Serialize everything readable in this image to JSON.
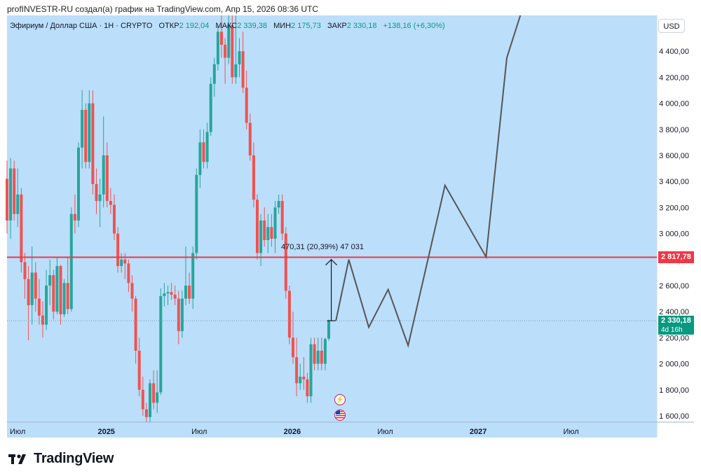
{
  "attribution": "profINVESTR-RU создал(а) график на TradingView.com, Апр 15, 2026 08:36 UTC",
  "legend": {
    "symbol": "Эфириум / Доллар США · 1Н · CRYPTO",
    "open_label": "ОТКР",
    "open": "2 192,04",
    "high_label": "МАКС",
    "high": "2 339,38",
    "low_label": "МИН",
    "low": "2 175,73",
    "close_label": "ЗАКР",
    "close": "2 330,18",
    "change": "+138,16 (+6,30%)"
  },
  "currency_button": "USD",
  "price_tags": {
    "level": "2 817,78",
    "last": "2 330,18",
    "countdown": "4d 16h"
  },
  "measure_label": "470,31 (20,39%) 47 031",
  "logo": {
    "text": "TradingView"
  },
  "icons": {
    "event_1": "bolt-icon",
    "event_2": "us-flag-icon"
  },
  "colors": {
    "background": "#bbdefb",
    "up": "#26a69a",
    "down": "#ef5350",
    "level_line": "#f23645",
    "projection": "#555555"
  },
  "chart_data": {
    "type": "candlestick",
    "title": "Эфириум / Доллар США · 1Н · CRYPTO",
    "ylim": [
      1550,
      4750
    ],
    "yticks": [
      1600,
      1800,
      2000,
      2200,
      2400,
      2600,
      2800,
      3000,
      3200,
      3400,
      3600,
      3800,
      4000,
      4200,
      4400
    ],
    "ytick_labels": [
      "1 600,00",
      "1 800,00",
      "2 000,00",
      "2 200,00",
      "2 400,00",
      "2 600,00",
      "2 800,00",
      "3 000,00",
      "3 200,00",
      "3 400,00",
      "3 600,00",
      "3 800,00",
      "4 000,00",
      "4 200,00",
      "4 400,00"
    ],
    "xticks": [
      {
        "label": "Июл",
        "week": 0,
        "bold": false
      },
      {
        "label": "2025",
        "week": 27,
        "bold": true
      },
      {
        "label": "Июл",
        "week": 53,
        "bold": false
      },
      {
        "label": "2026",
        "week": 79,
        "bold": true
      },
      {
        "label": "Июл",
        "week": 105,
        "bold": false
      },
      {
        "label": "2027",
        "week": 131,
        "bold": true
      },
      {
        "label": "Июл",
        "week": 157,
        "bold": false
      }
    ],
    "candles": [
      [
        3420,
        3560,
        3000,
        3100
      ],
      [
        3100,
        3580,
        2960,
        3500
      ],
      [
        3500,
        3560,
        3100,
        3150
      ],
      [
        3150,
        3500,
        3050,
        3300
      ],
      [
        3300,
        3350,
        2700,
        2780
      ],
      [
        2780,
        2850,
        2500,
        2650
      ],
      [
        2650,
        2750,
        2180,
        2450
      ],
      [
        2450,
        2900,
        2300,
        2700
      ],
      [
        2700,
        2780,
        2400,
        2500
      ],
      [
        2500,
        2650,
        2300,
        2370
      ],
      [
        2370,
        2480,
        2200,
        2300
      ],
      [
        2300,
        2720,
        2260,
        2600
      ],
      [
        2600,
        2800,
        2450,
        2680
      ],
      [
        2680,
        2720,
        2340,
        2400
      ],
      [
        2400,
        2820,
        2380,
        2750
      ],
      [
        2750,
        2760,
        2300,
        2380
      ],
      [
        2380,
        2650,
        2360,
        2620
      ],
      [
        2620,
        2820,
        2380,
        2420
      ],
      [
        2420,
        3200,
        2400,
        3150
      ],
      [
        3150,
        3300,
        3000,
        3100
      ],
      [
        3100,
        3700,
        3050,
        3660
      ],
      [
        3660,
        4100,
        3500,
        3950
      ],
      [
        3950,
        4000,
        3500,
        3550
      ],
      [
        3550,
        4100,
        3500,
        4000
      ],
      [
        4000,
        4100,
        3300,
        3380
      ],
      [
        3380,
        3500,
        3150,
        3250
      ],
      [
        3250,
        3420,
        3050,
        3300
      ],
      [
        3300,
        3900,
        3200,
        3600
      ],
      [
        3600,
        3700,
        3200,
        3250
      ],
      [
        3250,
        3350,
        3150,
        3220
      ],
      [
        3220,
        3300,
        2950,
        3000
      ],
      [
        3000,
        3050,
        2700,
        2750
      ],
      [
        2750,
        2850,
        2700,
        2800
      ],
      [
        2800,
        2850,
        2650,
        2770
      ],
      [
        2770,
        2800,
        2550,
        2620
      ],
      [
        2620,
        2680,
        2400,
        2500
      ],
      [
        2500,
        2520,
        2000,
        2100
      ],
      [
        2100,
        2200,
        1750,
        1800
      ],
      [
        1800,
        1900,
        1600,
        1650
      ],
      [
        1650,
        1700,
        1550,
        1590
      ],
      [
        1590,
        1880,
        1550,
        1850
      ],
      [
        1850,
        1950,
        1650,
        1700
      ],
      [
        1700,
        1950,
        1620,
        1780
      ],
      [
        1780,
        2580,
        1760,
        2520
      ],
      [
        2520,
        2620,
        2440,
        2540
      ],
      [
        2540,
        2600,
        2450,
        2550
      ],
      [
        2550,
        2620,
        2490,
        2530
      ],
      [
        2530,
        2600,
        2450,
        2500
      ],
      [
        2500,
        2560,
        2150,
        2250
      ],
      [
        2250,
        2560,
        2200,
        2500
      ],
      [
        2500,
        2900,
        2450,
        2600
      ],
      [
        2600,
        2700,
        2460,
        2500
      ],
      [
        2500,
        2900,
        2420,
        2850
      ],
      [
        2850,
        3500,
        2800,
        3450
      ],
      [
        3450,
        3800,
        3350,
        3700
      ],
      [
        3700,
        3800,
        3500,
        3550
      ],
      [
        3550,
        3850,
        3500,
        3780
      ],
      [
        3780,
        4200,
        3750,
        4150
      ],
      [
        4150,
        4350,
        4050,
        4300
      ],
      [
        4300,
        4600,
        4250,
        4550
      ],
      [
        4550,
        4800,
        4350,
        4450
      ],
      [
        4450,
        4500,
        4150,
        4350
      ],
      [
        4350,
        4700,
        4300,
        4600
      ],
      [
        4600,
        4700,
        4150,
        4200
      ],
      [
        4200,
        4800,
        4150,
        4300
      ],
      [
        4300,
        4500,
        4200,
        4400
      ],
      [
        4400,
        4550,
        4080,
        4120
      ],
      [
        4120,
        4250,
        3800,
        3850
      ],
      [
        3850,
        3920,
        3560,
        3600
      ],
      [
        3600,
        3700,
        3200,
        3260
      ],
      [
        3260,
        3300,
        2800,
        2850
      ],
      [
        2850,
        3150,
        2750,
        3100
      ],
      [
        3100,
        3200,
        2900,
        2950
      ],
      [
        2950,
        3150,
        2850,
        3050
      ],
      [
        3050,
        3150,
        2900,
        2960
      ],
      [
        2960,
        3250,
        2850,
        3200
      ],
      [
        3200,
        3300,
        3150,
        3250
      ],
      [
        3250,
        3300,
        2950,
        3000
      ],
      [
        3000,
        3050,
        2500,
        2560
      ],
      [
        2560,
        2600,
        2150,
        2200
      ],
      [
        2200,
        2400,
        2000,
        2050
      ],
      [
        2050,
        2200,
        1750,
        1850
      ],
      [
        1850,
        2000,
        1800,
        1900
      ],
      [
        1900,
        2050,
        1800,
        1880
      ],
      [
        1880,
        1930,
        1700,
        1750
      ],
      [
        1750,
        2200,
        1700,
        2150
      ],
      [
        2150,
        2200,
        1950,
        2000
      ],
      [
        2000,
        2200,
        1950,
        2100
      ],
      [
        2100,
        2200,
        1950,
        2000
      ],
      [
        2000,
        2200,
        1950,
        2190
      ],
      [
        2192.04,
        2339.38,
        2175.73,
        2330.18
      ]
    ],
    "horizontal_level": 2817.78,
    "last_price": 2330.18,
    "measure": {
      "week": 90.7,
      "from": 2330.18,
      "to": 2800.49,
      "label": "470,31 (20,39%) 47 031"
    },
    "projection": {
      "weeks": [
        92,
        95.6,
        101.2,
        106.6,
        112.2,
        122.5,
        134,
        139.8,
        144.8
      ],
      "prices": [
        2330,
        2800,
        2280,
        2570,
        2140,
        3370,
        2820,
        4350,
        4780
      ]
    }
  }
}
